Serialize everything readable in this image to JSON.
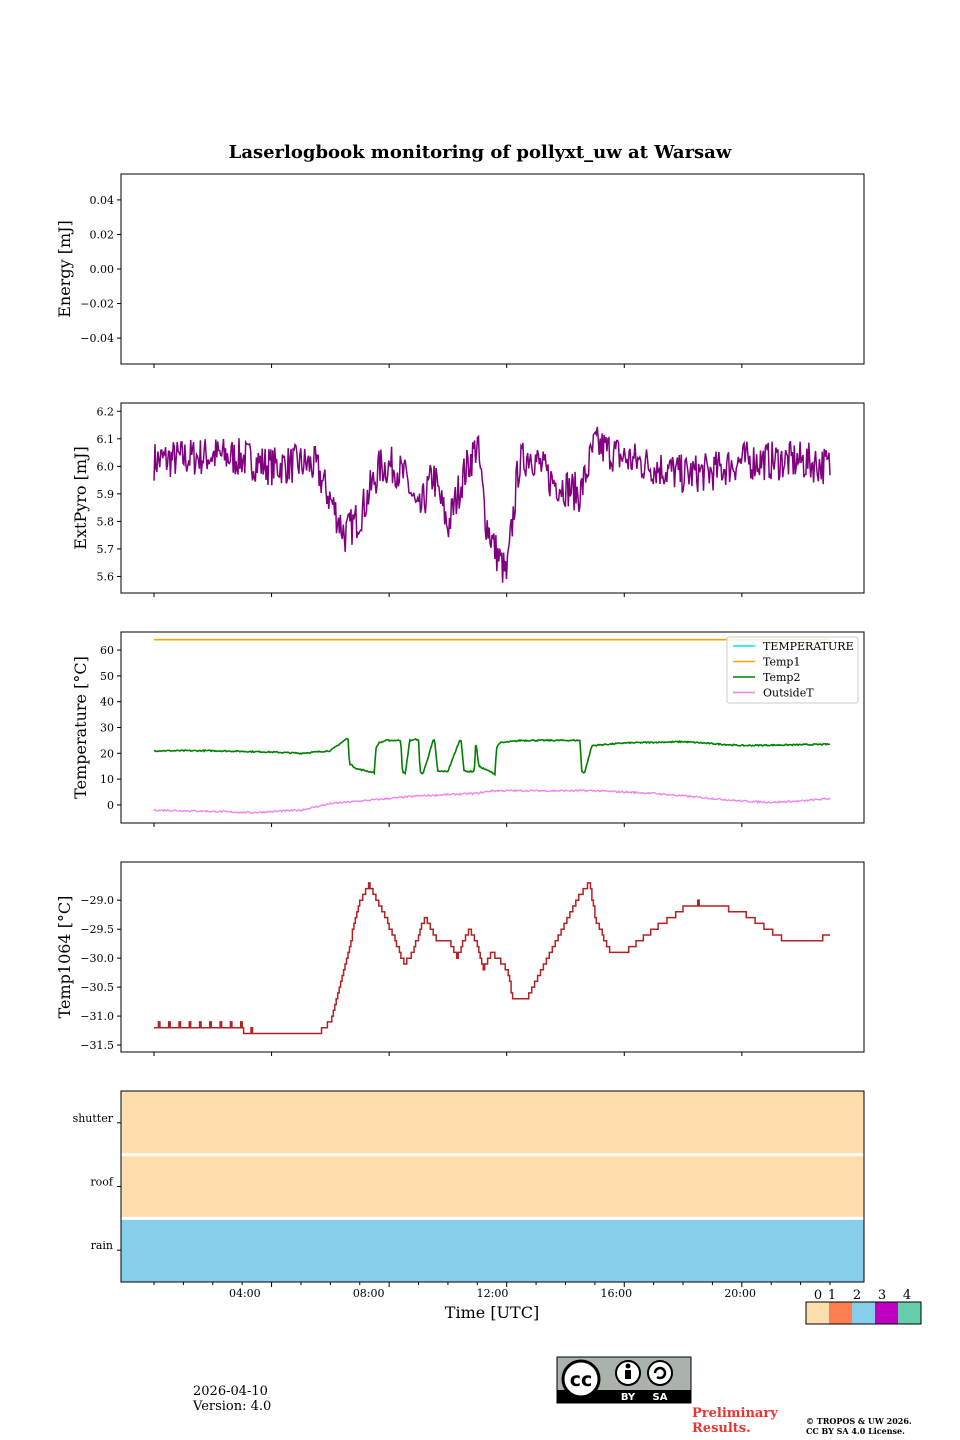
{
  "title": "Laserlogbook monitoring of pollyxt_uw at Warsaw",
  "xlabel": "Time [UTC]",
  "x_ticks": [
    "04:00",
    "08:00",
    "12:00",
    "16:00",
    "20:00"
  ],
  "date": "2026-04-10",
  "version": "Version: 4.0",
  "preliminary": [
    "Preliminary",
    "Results."
  ],
  "copyright": [
    "© TROPOS & UW 2026.",
    "CC BY SA 4.0 License."
  ],
  "license_badge": {
    "cc": "cc",
    "by": "BY",
    "sa": "SA"
  },
  "colors": {
    "energy": "#1f77b4",
    "extpyro": "#800080",
    "temperature": "#00e5ee",
    "temp1": "#ffa500",
    "temp2": "#008000",
    "outside": "#ee82ee",
    "temp1064": "#b22222",
    "status0": "#ffdead",
    "status1": "#ff7f50",
    "status2": "#87ceeb",
    "status3": "#c000c0",
    "status4": "#66cdaa"
  },
  "chart_data": [
    {
      "type": "line",
      "panel": "energy",
      "ylabel": "Energy [mJ]",
      "ylim": [
        -0.055,
        0.055
      ],
      "yticks": [
        0.04,
        0.02,
        0.0,
        -0.02,
        -0.04
      ],
      "ytick_labels": [
        "0.04",
        "0.02",
        "0.00",
        "−0.02",
        "−0.04"
      ],
      "series": []
    },
    {
      "type": "line",
      "panel": "extpyro",
      "ylabel": "ExtPyro [mJ]",
      "ylim": [
        5.54,
        6.23
      ],
      "yticks": [
        6.2,
        6.1,
        6.0,
        5.9,
        5.8,
        5.7,
        5.6
      ],
      "ytick_labels": [
        "6.2",
        "6.1",
        "6.0",
        "5.9",
        "5.8",
        "5.7",
        "5.6"
      ],
      "series": [
        {
          "name": "ExtPyro",
          "noise": 0.045,
          "x": [
            0.0,
            1.0,
            2.0,
            3.0,
            4.0,
            5.0,
            5.5,
            6.0,
            6.5,
            7.0,
            7.3,
            7.7,
            8.2,
            8.6,
            9.0,
            9.5,
            10.0,
            10.5,
            11.0,
            11.3,
            11.6,
            12.0,
            12.4,
            12.8,
            13.5,
            14.5,
            15.0,
            16.0,
            17.0,
            18.0,
            19.0,
            20.0,
            21.0,
            22.0,
            23.0
          ],
          "values": [
            6.02,
            6.03,
            6.04,
            6.03,
            6.0,
            6.01,
            6.0,
            5.88,
            5.75,
            5.82,
            5.9,
            6.0,
            6.0,
            5.95,
            5.82,
            5.97,
            5.78,
            5.96,
            6.08,
            5.8,
            5.7,
            5.6,
            6.0,
            6.05,
            5.95,
            5.9,
            6.08,
            6.03,
            6.0,
            5.97,
            5.98,
            6.02,
            6.02,
            6.02,
            6.0
          ]
        }
      ]
    },
    {
      "type": "line",
      "panel": "temperature",
      "ylabel": "Temperature [°C]",
      "ylim": [
        -7,
        67
      ],
      "yticks": [
        60,
        50,
        40,
        30,
        20,
        10,
        0
      ],
      "ytick_labels": [
        "60",
        "50",
        "40",
        "30",
        "20",
        "10",
        "0"
      ],
      "legend": [
        "TEMPERATURE",
        "Temp1",
        "Temp2",
        "OutsideT"
      ],
      "legend_position": "top-right",
      "series": [
        {
          "name": "TEMPERATURE",
          "x": [],
          "values": []
        },
        {
          "name": "Temp1",
          "x": [
            0,
            23
          ],
          "values": [
            64,
            64
          ]
        },
        {
          "name": "Temp2",
          "noise": 0.25,
          "x": [
            0.0,
            2.0,
            4.0,
            5.0,
            6.0,
            6.6,
            6.65,
            6.9,
            7.5,
            7.55,
            7.65,
            7.9,
            8.4,
            8.45,
            8.55,
            8.7,
            9.0,
            9.05,
            9.15,
            9.5,
            9.55,
            9.65,
            10.0,
            10.4,
            10.45,
            10.55,
            10.9,
            10.95,
            11.05,
            11.6,
            11.65,
            11.75,
            12.5,
            13.0,
            14.5,
            14.55,
            14.65,
            14.9,
            16.0,
            18.0,
            20.0,
            23.0
          ],
          "values": [
            21,
            21,
            20.5,
            20,
            21,
            26,
            16,
            14,
            12.5,
            22,
            24,
            25,
            25,
            13,
            12,
            25,
            25.5,
            13,
            12,
            25,
            25,
            13,
            13,
            25,
            25,
            13,
            13,
            25,
            15,
            12,
            22,
            24,
            25,
            25,
            25,
            13,
            12.5,
            23,
            24,
            24.5,
            23,
            23.5
          ]
        },
        {
          "name": "OutsideT",
          "noise": 0.35,
          "x": [
            0,
            2,
            3.3,
            5,
            6,
            7,
            8,
            8.5,
            9,
            10,
            11,
            11.5,
            12,
            13,
            14,
            15,
            16,
            17,
            18,
            19,
            20,
            21,
            22,
            23
          ],
          "values": [
            -2,
            -2.5,
            -3,
            -2,
            0.5,
            1.5,
            2.5,
            3,
            3.5,
            4,
            4.5,
            5.5,
            5.5,
            5.5,
            5.5,
            5.5,
            5,
            4.5,
            3.5,
            2.5,
            1.5,
            1,
            1.5,
            2.5
          ]
        }
      ]
    },
    {
      "type": "line",
      "panel": "temp1064",
      "ylabel": "Temp1064 [°C]",
      "ylim": [
        -31.62,
        -28.34
      ],
      "yticks": [
        -29.0,
        -29.5,
        -30.0,
        -30.5,
        -31.0,
        -31.5
      ],
      "ytick_labels": [
        "−29.0",
        "−29.5",
        "−30.0",
        "−30.5",
        "−31.0",
        "−31.5"
      ],
      "series": [
        {
          "name": "Temp1064",
          "step": 0.1,
          "x": [
            0.0,
            1.0,
            2.0,
            3.0,
            4.0,
            4.9,
            5.5,
            6.0,
            6.5,
            7.0,
            7.3,
            7.6,
            8.2,
            8.5,
            8.8,
            9.2,
            9.6,
            10.0,
            10.3,
            10.7,
            11.0,
            11.2,
            11.5,
            12.0,
            12.2,
            12.6,
            13.0,
            14.0,
            14.5,
            14.8,
            15.0,
            15.5,
            16.0,
            17.0,
            18.0,
            18.5,
            19.0,
            20.0,
            21.0,
            21.5,
            22.0,
            22.5,
            23.0
          ],
          "values": [
            -31.2,
            -31.2,
            -31.2,
            -31.25,
            -31.3,
            -31.35,
            -31.35,
            -31.1,
            -30.1,
            -29.0,
            -28.75,
            -29.0,
            -29.7,
            -30.1,
            -29.9,
            -29.3,
            -29.7,
            -29.7,
            -30.0,
            -29.5,
            -29.8,
            -30.2,
            -29.9,
            -30.2,
            -30.7,
            -30.75,
            -30.4,
            -29.4,
            -28.9,
            -28.7,
            -29.3,
            -29.9,
            -29.9,
            -29.5,
            -29.15,
            -29.05,
            -29.1,
            -29.2,
            -29.55,
            -29.7,
            -29.7,
            -29.7,
            -29.6
          ]
        }
      ]
    },
    {
      "type": "heatmap",
      "panel": "status",
      "rows": [
        "shutter",
        "roof",
        "rain"
      ],
      "values": [
        0,
        0,
        2
      ],
      "colorbar_ticks": [
        "0",
        "1",
        "2",
        "3",
        "4"
      ]
    }
  ]
}
